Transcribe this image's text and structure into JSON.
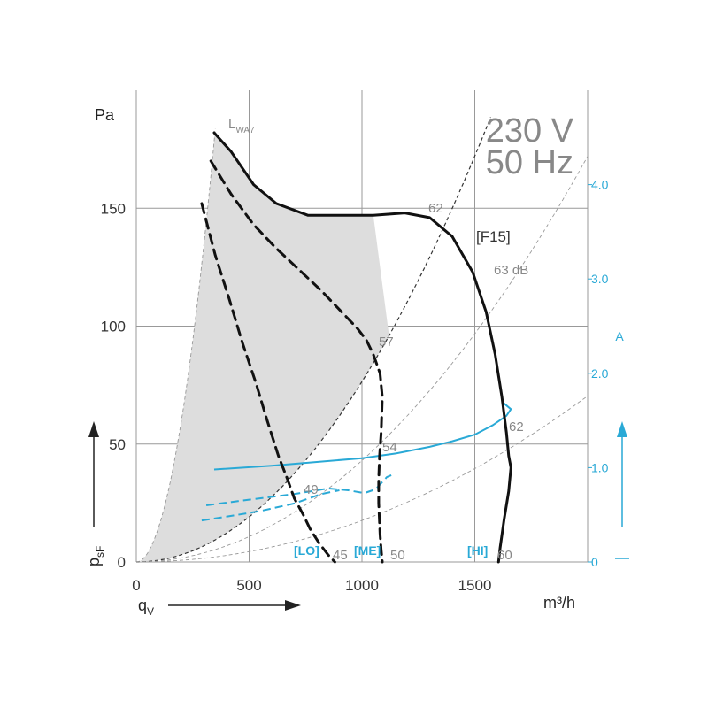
{
  "chart_data": {
    "type": "line",
    "supply": {
      "line1": "230 V",
      "line2": "50 Hz"
    },
    "x_axis": {
      "label_main": "q",
      "label_sub": "V",
      "unit": "m³/h",
      "range": [
        0,
        2000
      ],
      "ticks": [
        0,
        500,
        1000,
        1500
      ]
    },
    "y_axis": {
      "label_main": "p",
      "label_sub": "sF",
      "unit": "Pa",
      "range": [
        0,
        200
      ],
      "ticks": [
        0,
        50,
        100,
        150
      ]
    },
    "y2_axis": {
      "unit": "A",
      "range": [
        0,
        5
      ],
      "ticks": [
        "0",
        "1.0",
        "2.0",
        "3.0",
        "4.0"
      ]
    },
    "series": [
      {
        "name": "[F15]",
        "style": "solid",
        "color": "#111111",
        "points": [
          [
            345,
            182
          ],
          [
            420,
            174
          ],
          [
            520,
            160
          ],
          [
            620,
            152
          ],
          [
            760,
            147
          ],
          [
            920,
            147
          ],
          [
            1050,
            147
          ],
          [
            1190,
            148
          ],
          [
            1300,
            146
          ],
          [
            1400,
            138
          ],
          [
            1490,
            123
          ],
          [
            1550,
            106
          ],
          [
            1590,
            88
          ],
          [
            1620,
            70
          ],
          [
            1640,
            55
          ],
          [
            1650,
            45
          ],
          [
            1660,
            40
          ],
          [
            1650,
            30
          ],
          [
            1630,
            18
          ],
          [
            1612,
            6
          ],
          [
            1605,
            0
          ]
        ]
      },
      {
        "name": "[ME]",
        "style": "dashed",
        "color": "#111111",
        "points": [
          [
            330,
            170
          ],
          [
            420,
            156
          ],
          [
            520,
            143
          ],
          [
            620,
            133
          ],
          [
            720,
            124
          ],
          [
            820,
            115
          ],
          [
            900,
            107
          ],
          [
            980,
            99
          ],
          [
            1020,
            94
          ],
          [
            1050,
            88
          ],
          [
            1080,
            80
          ],
          [
            1090,
            70
          ],
          [
            1085,
            55
          ],
          [
            1078,
            45
          ],
          [
            1074,
            35
          ],
          [
            1074,
            25
          ],
          [
            1080,
            12
          ],
          [
            1085,
            5
          ],
          [
            1090,
            0
          ]
        ]
      },
      {
        "name": "[LO]",
        "style": "dashed",
        "color": "#111111",
        "points": [
          [
            290,
            152
          ],
          [
            350,
            130
          ],
          [
            410,
            112
          ],
          [
            470,
            93
          ],
          [
            530,
            76
          ],
          [
            580,
            60
          ],
          [
            630,
            45
          ],
          [
            670,
            35
          ],
          [
            700,
            27
          ],
          [
            740,
            20
          ],
          [
            770,
            14
          ],
          [
            810,
            8
          ],
          [
            850,
            3
          ],
          [
            880,
            0
          ]
        ]
      }
    ],
    "current_curves": [
      {
        "name": "[HI]",
        "color": "#29a9d6",
        "points": [
          [
            345,
            0.98
          ],
          [
            600,
            1.02
          ],
          [
            800,
            1.06
          ],
          [
            1000,
            1.1
          ],
          [
            1150,
            1.15
          ],
          [
            1300,
            1.22
          ],
          [
            1400,
            1.28
          ],
          [
            1500,
            1.35
          ],
          [
            1580,
            1.45
          ],
          [
            1640,
            1.55
          ],
          [
            1660,
            1.62
          ],
          [
            1620,
            1.7
          ]
        ]
      },
      {
        "name": "[ME]",
        "color": "#29a9d6",
        "style": "dashed",
        "points": [
          [
            310,
            0.6
          ],
          [
            500,
            0.66
          ],
          [
            700,
            0.72
          ],
          [
            850,
            0.78
          ],
          [
            940,
            0.76
          ],
          [
            1010,
            0.73
          ],
          [
            1060,
            0.77
          ],
          [
            1110,
            0.9
          ],
          [
            1130,
            0.92
          ]
        ]
      },
      {
        "name": "[LO]",
        "color": "#29a9d6",
        "style": "dashed",
        "points": [
          [
            290,
            0.44
          ],
          [
            400,
            0.48
          ],
          [
            550,
            0.54
          ],
          [
            700,
            0.62
          ],
          [
            820,
            0.72
          ],
          [
            900,
            0.76
          ]
        ]
      }
    ],
    "system_curves_k": [
      0.0015,
      7.65e-05,
      4.3e-05,
      1.76e-05
    ],
    "shaded_region": {
      "color": "#dddddd",
      "boundary_k": 0.0015,
      "upper_k": 7.65e-05
    },
    "annotations": {
      "lwa": {
        "main": "L",
        "sub": "WA7"
      },
      "db_labels": [
        "62",
        "63 dB",
        "57",
        "62",
        "54",
        "49",
        "45",
        "50",
        "60"
      ],
      "modes": [
        "[LO]",
        "[ME]",
        "[HI]"
      ]
    },
    "grid": true
  }
}
